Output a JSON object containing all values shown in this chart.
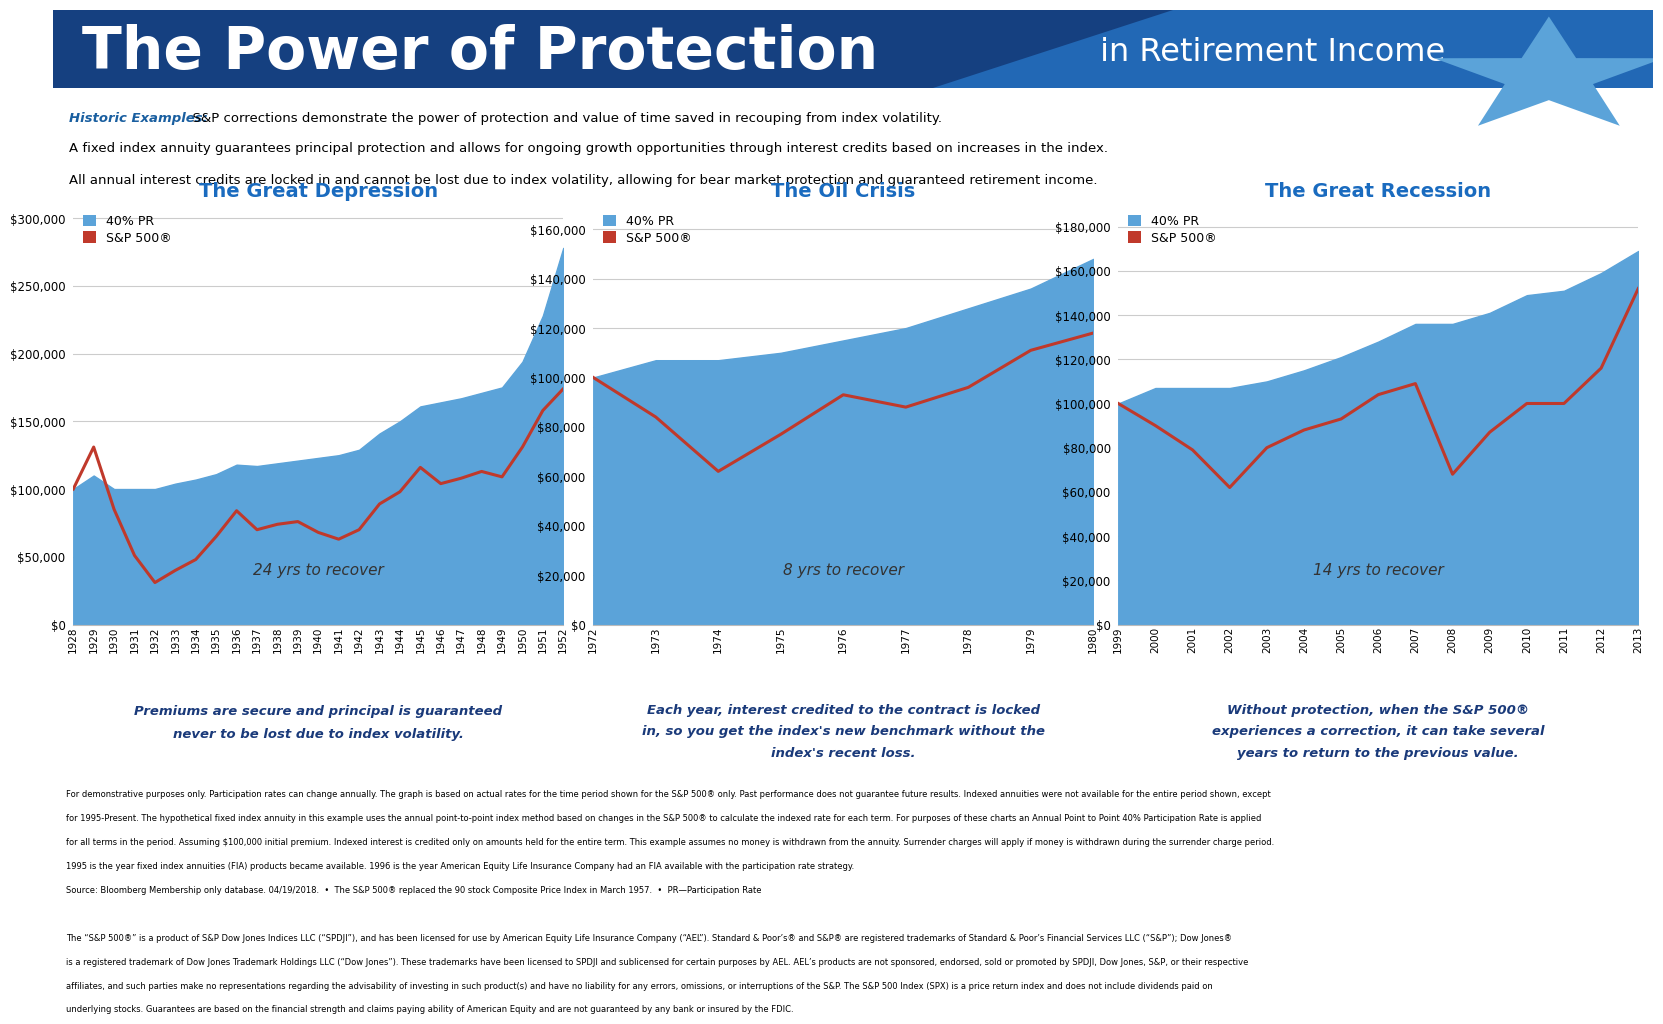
{
  "title_big": "The Power of Protection",
  "title_small": " in Retirement Income",
  "header_bg": "#154080",
  "header_bg2": "#2a6bb5",
  "red_stripe": "#8B2020",
  "star_color": "#5ba3d9",
  "subtitle_label": "Historic Examples:",
  "subtitle_text1": "  S&P corrections demonstrate the power of protection and value of time saved in recouping from index volatility.",
  "subtitle_text2": "A fixed index annuity guarantees principal protection and allows for ongoing growth opportunities through interest credits based on increases in the index.",
  "subtitle_text3": "All annual interest credits are locked in and cannot be lost due to index volatility, allowing for bear market protection and guaranteed retirement income.",
  "chart1_title": "The Great Depression",
  "chart1_years": [
    "1928",
    "1929",
    "1930",
    "1931",
    "1932",
    "1933",
    "1934",
    "1935",
    "1936",
    "1937",
    "1938",
    "1939",
    "1940",
    "1941",
    "1942",
    "1943",
    "1944",
    "1945",
    "1946",
    "1947",
    "1948",
    "1949",
    "1950",
    "1951",
    "1952"
  ],
  "chart1_pr": [
    100000,
    110000,
    100000,
    100000,
    100000,
    104000,
    107000,
    111000,
    118000,
    117000,
    119000,
    121000,
    123000,
    125000,
    129000,
    141000,
    150000,
    161000,
    164000,
    167000,
    171000,
    175000,
    194000,
    228000,
    278000
  ],
  "chart1_sp": [
    100000,
    131000,
    85000,
    51000,
    31000,
    40000,
    48000,
    65000,
    84000,
    70000,
    74000,
    76000,
    68000,
    63000,
    70000,
    89000,
    98000,
    116000,
    104000,
    108000,
    113000,
    109000,
    131000,
    158000,
    174000
  ],
  "chart1_ylim": [
    0,
    310000
  ],
  "chart1_yticks": [
    0,
    50000,
    100000,
    150000,
    200000,
    250000,
    300000
  ],
  "chart1_recover": "24 yrs to recover",
  "chart1_caption1": "Premiums are secure and principal is guaranteed",
  "chart1_caption2": "never to be lost due to index volatility.",
  "chart2_title": "The Oil Crisis",
  "chart2_years": [
    "1972",
    "1973",
    "1974",
    "1975",
    "1976",
    "1977",
    "1978",
    "1979",
    "1980"
  ],
  "chart2_pr": [
    100000,
    107000,
    107000,
    110000,
    115000,
    120000,
    128000,
    136000,
    148000
  ],
  "chart2_sp": [
    100000,
    84000,
    62000,
    77000,
    93000,
    88000,
    96000,
    111000,
    118000
  ],
  "chart2_ylim": [
    0,
    170000
  ],
  "chart2_yticks": [
    0,
    20000,
    40000,
    60000,
    80000,
    100000,
    120000,
    140000,
    160000
  ],
  "chart2_recover": "8 yrs to recover",
  "chart2_caption1": "Each year, interest credited to the contract is locked",
  "chart2_caption2": "in, so you get the index's new benchmark without the",
  "chart2_caption3": "index's recent loss.",
  "chart3_title": "The Great Recession",
  "chart3_years": [
    "1999",
    "2000",
    "2001",
    "2002",
    "2003",
    "2004",
    "2005",
    "2006",
    "2007",
    "2008",
    "2009",
    "2010",
    "2011",
    "2012",
    "2013"
  ],
  "chart3_pr": [
    100000,
    107000,
    107000,
    107000,
    110000,
    115000,
    121000,
    128000,
    136000,
    136000,
    141000,
    149000,
    151000,
    159000,
    169000
  ],
  "chart3_sp": [
    100000,
    90000,
    79000,
    62000,
    80000,
    88000,
    93000,
    104000,
    109000,
    68000,
    87000,
    100000,
    100000,
    116000,
    152000
  ],
  "chart3_ylim": [
    0,
    190000
  ],
  "chart3_yticks": [
    0,
    20000,
    40000,
    60000,
    80000,
    100000,
    120000,
    140000,
    160000,
    180000
  ],
  "chart3_recover": "14 yrs to recover",
  "chart3_caption1": "Without protection, when the S&P 500®",
  "chart3_caption2": "experiences a correction, it can take several",
  "chart3_caption3": "years to return to the previous value.",
  "blue_fill": "#5ba3d9",
  "red_line": "#c0392b",
  "grid_color": "#cccccc",
  "footnote1": "For demonstrative purposes only. Participation rates can change annually. The graph is based on actual rates for the time period shown for the S&P 500® only. Past performance does not guarantee future results. Indexed annuities were not available for the entire period shown, except",
  "footnote2": "for 1995-Present. The hypothetical fixed index annuity in this example uses the annual point-to-point index method based on changes in the S&P 500® to calculate the indexed rate for each term. For purposes of these charts an Annual Point to Point 40% Participation Rate is applied",
  "footnote3": "for all terms in the period. Assuming $100,000 initial premium. Indexed interest is credited only on amounts held for the entire term. This example assumes no money is withdrawn from the annuity. Surrender charges will apply if money is withdrawn during the surrender charge period.",
  "footnote4": "1995 is the year fixed index annuities (FIA) products became available. 1996 is the year American Equity Life Insurance Company had an FIA available with the participation rate strategy.",
  "footnote5": "Source: Bloomberg Membership only database. 04/19/2018.  •  The S&P 500® replaced the 90 stock Composite Price Index in March 1957.  •  PR—Participation Rate",
  "footnote6": "The “S&P 500®” is a product of S&P Dow Jones Indices LLC (“SPDJI”), and has been licensed for use by American Equity Life Insurance Company (“AEL”). Standard & Poor’s® and S&P® are registered trademarks of Standard & Poor’s Financial Services LLC (“S&P”); Dow Jones®",
  "footnote7": "is a registered trademark of Dow Jones Trademark Holdings LLC (“Dow Jones”). These trademarks have been licensed to SPDJI and sublicensed for certain purposes by AEL. AEL’s products are not sponsored, endorsed, sold or promoted by SPDJI, Dow Jones, S&P, or their respective",
  "footnote8": "affiliates, and such parties make no representations regarding the advisability of investing in such product(s) and have no liability for any errors, omissions, or interruptions of the S&P. The S&P 500 Index (SPX) is a price return index and does not include dividends paid on",
  "footnote9": "underlying stocks. Guarantees are based on the financial strength and claims paying ability of American Equity and are not guaranteed by any bank or insured by the FDIC."
}
